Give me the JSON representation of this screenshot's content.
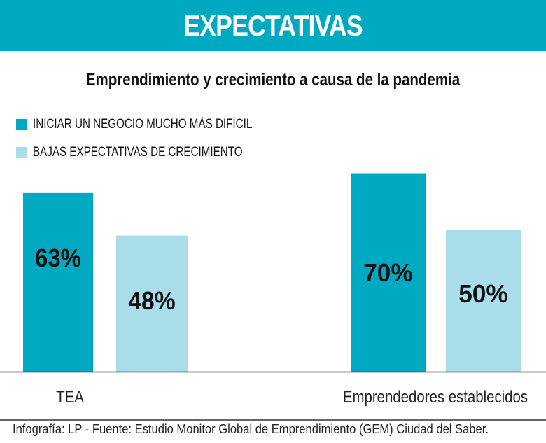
{
  "header": {
    "title": "EXPECTATIVAS"
  },
  "footer": {
    "source": "Infografía: LP - Fuente: Estudio Monitor Global de Emprendimiento (GEM) Ciudad del Saber."
  },
  "chart_data": {
    "type": "bar",
    "title": "Emprendimiento y crecimiento a causa de la pandemia",
    "categories": [
      "TEA",
      "Emprendedores establecidos"
    ],
    "series": [
      {
        "name": "INICIAR UN NEGOCIO MUCHO MÁS DIFÍCIL",
        "values": [
          63,
          70
        ],
        "labels": [
          "63%",
          "70%"
        ],
        "color": "#00a9c2"
      },
      {
        "name": "BAJAS EXPECTATIVAS DE CRECIMIENTO",
        "values": [
          48,
          50
        ],
        "labels": [
          "48%",
          "50%"
        ],
        "color": "#a8dde9"
      }
    ],
    "ylim": [
      0,
      100
    ],
    "grid": false,
    "legend": "top-left",
    "xlabel": "",
    "ylabel": ""
  }
}
